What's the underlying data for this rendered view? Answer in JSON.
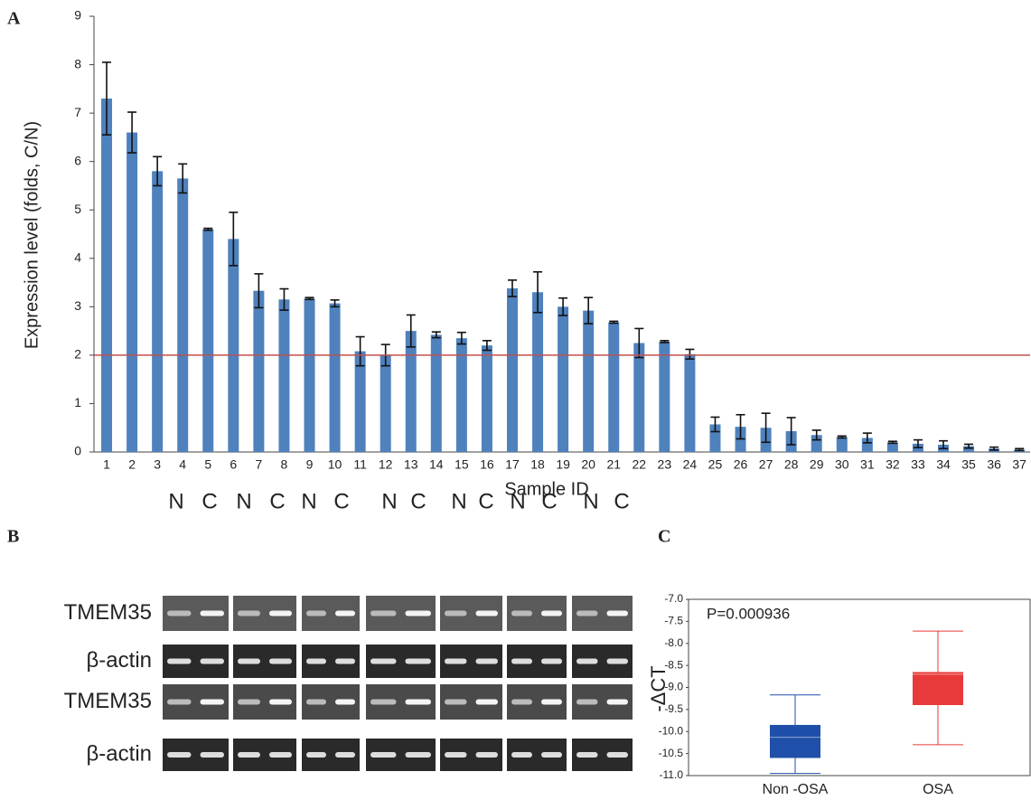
{
  "chart_data": [
    {
      "type": "bar",
      "panel_label": "A",
      "x_label": "Sample ID",
      "y_label": "Expression level (folds, C/N)",
      "categories": [
        "1",
        "2",
        "3",
        "4",
        "5",
        "6",
        "7",
        "8",
        "9",
        "10",
        "11",
        "12",
        "13",
        "14",
        "15",
        "16",
        "17",
        "18",
        "19",
        "20",
        "21",
        "22",
        "23",
        "24",
        "25",
        "26",
        "27",
        "28",
        "29",
        "30",
        "31",
        "32",
        "33",
        "34",
        "35",
        "36",
        "37"
      ],
      "values": [
        7.3,
        6.6,
        5.8,
        5.65,
        4.6,
        4.4,
        3.33,
        3.15,
        3.17,
        3.07,
        2.08,
        2.0,
        2.5,
        2.42,
        2.35,
        2.2,
        3.38,
        3.3,
        3.0,
        2.92,
        2.68,
        2.25,
        2.28,
        2.02,
        0.57,
        0.52,
        0.5,
        0.43,
        0.35,
        0.31,
        0.29,
        0.2,
        0.17,
        0.15,
        0.12,
        0.07,
        0.05
      ],
      "errors": [
        0.75,
        0.42,
        0.3,
        0.3,
        0.02,
        0.55,
        0.35,
        0.22,
        0.02,
        0.07,
        0.3,
        0.22,
        0.33,
        0.06,
        0.12,
        0.1,
        0.17,
        0.42,
        0.18,
        0.27,
        0.02,
        0.3,
        0.02,
        0.1,
        0.15,
        0.25,
        0.3,
        0.28,
        0.1,
        0.02,
        0.1,
        0.02,
        0.08,
        0.08,
        0.04,
        0.03,
        0.02
      ],
      "color": "#4f81bd",
      "threshold": 2,
      "threshold_color": "#c0504d",
      "ylim": [
        0,
        9
      ],
      "yticks": [
        0,
        1,
        2,
        3,
        4,
        5,
        6,
        7,
        8,
        9
      ]
    },
    {
      "type": "box",
      "panel_label": "C",
      "annotation": "P=0.000936",
      "y_label": "-ΔCT",
      "categories": [
        "Non -OSA",
        "OSA"
      ],
      "boxes": [
        {
          "min": -10.95,
          "q1": -10.6,
          "median": -10.13,
          "q3": -9.85,
          "max": -9.17,
          "color": "#1f4fa8"
        },
        {
          "min": -10.3,
          "q1": -9.4,
          "median": -8.7,
          "q3": -8.65,
          "max": -7.72,
          "color": "#e83a3a"
        }
      ],
      "ylim": [
        -11,
        -7
      ],
      "yticks": [
        {
          "value": -7,
          "label": "-7.0"
        },
        {
          "value": -7.5,
          "label": "-7.5"
        },
        {
          "value": -8,
          "label": "-8.0"
        },
        {
          "value": -8.5,
          "label": "-8.5"
        },
        {
          "value": -9,
          "label": "-9.0"
        },
        {
          "value": -9.5,
          "label": "-9.5"
        },
        {
          "value": -10,
          "label": "-10.0"
        },
        {
          "value": -10.5,
          "label": "-10.5"
        },
        {
          "value": -11,
          "label": "-11.0"
        }
      ]
    }
  ],
  "gel": {
    "panel_label": "B",
    "column_labels": [
      "N",
      "C",
      "N",
      "C",
      "N",
      "C",
      "N",
      "C",
      "N",
      "C",
      "N",
      "C",
      "N",
      "C"
    ],
    "row_labels": [
      "TMEM35",
      "β-actin",
      "TMEM35",
      "β-actin"
    ]
  }
}
